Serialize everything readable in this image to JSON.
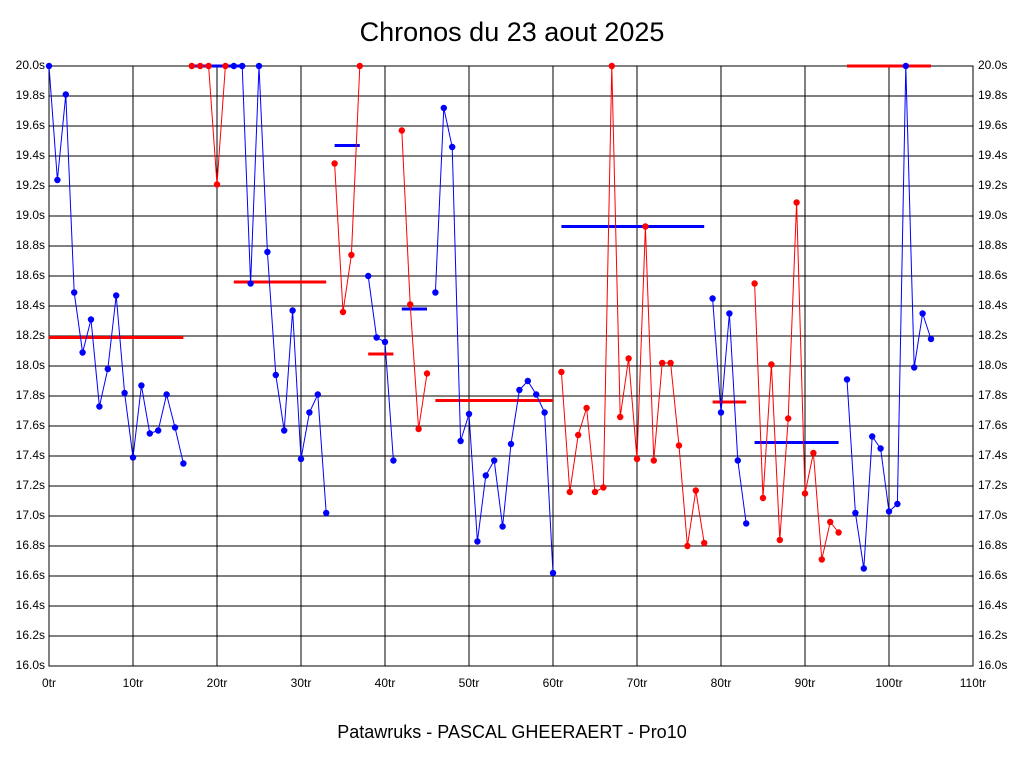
{
  "chart_data": {
    "type": "line",
    "title": "Chronos du 23 aout 2025",
    "xlabel": "Patawruks - PASCAL GHEERAERT - Pro10",
    "xlim": [
      0,
      110
    ],
    "ylim": [
      16,
      20
    ],
    "grid": true,
    "xticks": [
      {
        "value": 0,
        "label": "0tr"
      },
      {
        "value": 10,
        "label": "10tr"
      },
      {
        "value": 20,
        "label": "20tr"
      },
      {
        "value": 30,
        "label": "30tr"
      },
      {
        "value": 40,
        "label": "40tr"
      },
      {
        "value": 50,
        "label": "50tr"
      },
      {
        "value": 60,
        "label": "60tr"
      },
      {
        "value": 70,
        "label": "70tr"
      },
      {
        "value": 80,
        "label": "80tr"
      },
      {
        "value": 90,
        "label": "90tr"
      },
      {
        "value": 100,
        "label": "100tr"
      },
      {
        "value": 110,
        "label": "110tr"
      }
    ],
    "yticks": [
      {
        "value": 16.0,
        "label": "16.0s"
      },
      {
        "value": 16.2,
        "label": "16.2s"
      },
      {
        "value": 16.4,
        "label": "16.4s"
      },
      {
        "value": 16.6,
        "label": "16.6s"
      },
      {
        "value": 16.8,
        "label": "16.8s"
      },
      {
        "value": 17.0,
        "label": "17.0s"
      },
      {
        "value": 17.2,
        "label": "17.2s"
      },
      {
        "value": 17.4,
        "label": "17.4s"
      },
      {
        "value": 17.6,
        "label": "17.6s"
      },
      {
        "value": 17.8,
        "label": "17.8s"
      },
      {
        "value": 18.0,
        "label": "18.0s"
      },
      {
        "value": 18.2,
        "label": "18.2s"
      },
      {
        "value": 18.4,
        "label": "18.4s"
      },
      {
        "value": 18.6,
        "label": "18.6s"
      },
      {
        "value": 18.8,
        "label": "18.8s"
      },
      {
        "value": 19.0,
        "label": "19.0s"
      },
      {
        "value": 19.2,
        "label": "19.2s"
      },
      {
        "value": 19.4,
        "label": "19.4s"
      },
      {
        "value": 19.6,
        "label": "19.6s"
      },
      {
        "value": 19.8,
        "label": "19.8s"
      },
      {
        "value": 20.0,
        "label": "20.0s"
      }
    ],
    "series": [
      {
        "color": "#0000ff",
        "x": [
          0,
          1,
          2,
          3,
          4,
          5,
          6,
          7,
          8,
          9,
          10,
          11,
          12,
          13,
          14,
          15,
          16
        ],
        "values": [
          20.0,
          19.24,
          19.81,
          18.49,
          18.09,
          18.31,
          17.73,
          17.98,
          18.47,
          17.82,
          17.39,
          17.87,
          17.55,
          17.57,
          17.81,
          17.59,
          17.35
        ]
      },
      {
        "color": "#ff0000",
        "x": [
          17,
          18,
          19,
          20,
          21
        ],
        "values": [
          20.0,
          20.0,
          20.0,
          19.21,
          20.0
        ]
      },
      {
        "color": "#0000ff",
        "x": [
          22,
          23,
          24,
          25,
          26,
          27,
          28,
          29,
          30,
          31,
          32,
          33
        ],
        "values": [
          20.0,
          20.0,
          18.55,
          20.0,
          18.76,
          17.94,
          17.57,
          18.37,
          17.38,
          17.69,
          17.81,
          17.02
        ]
      },
      {
        "color": "#ff0000",
        "x": [
          34,
          35,
          36,
          37
        ],
        "values": [
          19.35,
          18.36,
          18.74,
          20.0
        ]
      },
      {
        "color": "#0000ff",
        "x": [
          38,
          39,
          40,
          41
        ],
        "values": [
          18.6,
          18.19,
          18.16,
          17.37
        ]
      },
      {
        "color": "#ff0000",
        "x": [
          42,
          43,
          44,
          45
        ],
        "values": [
          19.57,
          18.41,
          17.58,
          17.95
        ]
      },
      {
        "color": "#0000ff",
        "x": [
          46,
          47,
          48,
          49,
          50,
          51,
          52,
          53,
          54,
          55,
          56,
          57,
          58,
          59,
          60
        ],
        "values": [
          18.49,
          19.72,
          19.46,
          17.5,
          17.68,
          16.83,
          17.27,
          17.37,
          16.93,
          17.48,
          17.84,
          17.9,
          17.81,
          17.69,
          16.62
        ]
      },
      {
        "color": "#ff0000",
        "x": [
          61,
          62,
          63,
          64,
          65,
          66,
          67,
          68,
          69,
          70,
          71,
          72,
          73,
          74,
          75,
          76,
          77,
          78
        ],
        "values": [
          17.96,
          17.16,
          17.54,
          17.72,
          17.16,
          17.19,
          20.0,
          17.66,
          18.05,
          17.38,
          18.93,
          17.37,
          18.02,
          18.02,
          17.47,
          16.8,
          17.17,
          16.82
        ]
      },
      {
        "color": "#0000ff",
        "x": [
          79,
          80,
          81,
          82,
          83
        ],
        "values": [
          18.45,
          17.69,
          18.35,
          17.37,
          16.95
        ]
      },
      {
        "color": "#ff0000",
        "x": [
          84,
          85,
          86,
          87,
          88,
          89,
          90,
          91,
          92,
          93,
          94
        ],
        "values": [
          18.55,
          17.12,
          18.01,
          16.84,
          17.65,
          19.09,
          17.15,
          17.42,
          16.71,
          16.96,
          16.89
        ]
      },
      {
        "color": "#0000ff",
        "x": [
          95,
          96,
          97,
          98,
          99,
          100,
          101,
          102,
          103,
          104,
          105
        ],
        "values": [
          17.91,
          17.02,
          16.65,
          17.53,
          17.45,
          17.03,
          17.08,
          20.0,
          17.99,
          18.35,
          18.18
        ]
      }
    ],
    "averages": [
      {
        "color": "#ff0000",
        "x": [
          0,
          16
        ],
        "value": 18.19
      },
      {
        "color": "#0000ff",
        "x": [
          17,
          23
        ],
        "value": 20.0
      },
      {
        "color": "#ff0000",
        "x": [
          22,
          33
        ],
        "value": 18.56
      },
      {
        "color": "#0000ff",
        "x": [
          34,
          37
        ],
        "value": 19.47
      },
      {
        "color": "#ff0000",
        "x": [
          38,
          41
        ],
        "value": 18.08
      },
      {
        "color": "#0000ff",
        "x": [
          42,
          45
        ],
        "value": 18.38
      },
      {
        "color": "#ff0000",
        "x": [
          46,
          60
        ],
        "value": 17.77
      },
      {
        "color": "#0000ff",
        "x": [
          61,
          78
        ],
        "value": 18.93
      },
      {
        "color": "#ff0000",
        "x": [
          79,
          83
        ],
        "value": 17.76
      },
      {
        "color": "#0000ff",
        "x": [
          84,
          94
        ],
        "value": 17.49
      },
      {
        "color": "#ff0000",
        "x": [
          95,
          105
        ],
        "value": 20.0
      }
    ]
  }
}
